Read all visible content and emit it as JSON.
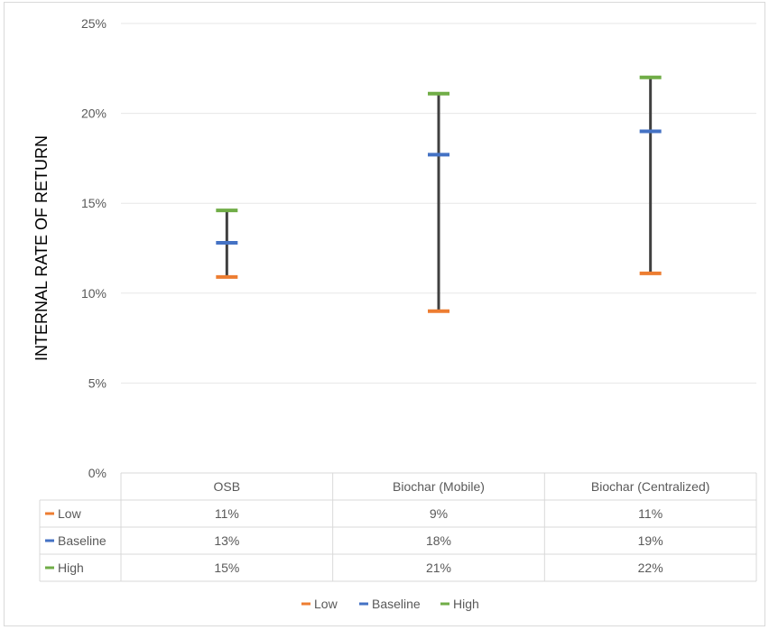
{
  "chart_data": {
    "type": "line",
    "subtype": "high-low-close with data table",
    "ylabel": "INTERNAL RATE OF RETURN",
    "ylim": [
      0,
      25
    ],
    "yticks": [
      "0%",
      "5%",
      "10%",
      "15%",
      "20%",
      "25%"
    ],
    "ytick_values": [
      0,
      5,
      10,
      15,
      20,
      25
    ],
    "grid": true,
    "legend_position": "bottom",
    "categories": [
      "OSB",
      "Biochar (Mobile)",
      "Biochar (Centralized)"
    ],
    "series": [
      {
        "name": "Low",
        "color": "#ed7d31",
        "values": [
          10.9,
          9.0,
          11.1
        ],
        "labels": [
          "11%",
          "9%",
          "11%"
        ]
      },
      {
        "name": "Baseline",
        "color": "#4472c4",
        "values": [
          12.8,
          17.7,
          19.0
        ],
        "labels": [
          "13%",
          "18%",
          "19%"
        ]
      },
      {
        "name": "High",
        "color": "#70ad47",
        "values": [
          14.6,
          21.1,
          22.0
        ],
        "labels": [
          "15%",
          "21%",
          "22%"
        ]
      }
    ],
    "range_line_color": "#404040"
  }
}
